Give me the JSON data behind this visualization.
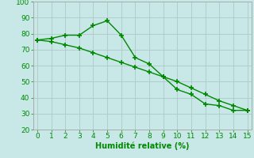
{
  "x": [
    0,
    1,
    2,
    3,
    4,
    5,
    6,
    7,
    8,
    9,
    10,
    11,
    12,
    13,
    14,
    15
  ],
  "line1_y": [
    76,
    77,
    79,
    79,
    85,
    88,
    79,
    65,
    61,
    53,
    45,
    42,
    36,
    35,
    32,
    32
  ],
  "line2_y": [
    76,
    75,
    73,
    71,
    68,
    65,
    62,
    59,
    56,
    53,
    50,
    46,
    42,
    38,
    35,
    32
  ],
  "line_color": "#008800",
  "marker": "+",
  "marker_size": 5,
  "linewidth": 1.0,
  "bg_color": "#c8e8e8",
  "grid_color": "#b0c8c8",
  "xlabel": "Humidité relative (%)",
  "xlabel_color": "#008800",
  "xlabel_fontsize": 7,
  "tick_color": "#008800",
  "tick_fontsize": 6.5,
  "ylim": [
    20,
    100
  ],
  "xlim": [
    -0.3,
    15.3
  ],
  "yticks": [
    20,
    30,
    40,
    50,
    60,
    70,
    80,
    90,
    100
  ],
  "xticks": [
    0,
    1,
    2,
    3,
    4,
    5,
    6,
    7,
    8,
    9,
    10,
    11,
    12,
    13,
    14,
    15
  ]
}
